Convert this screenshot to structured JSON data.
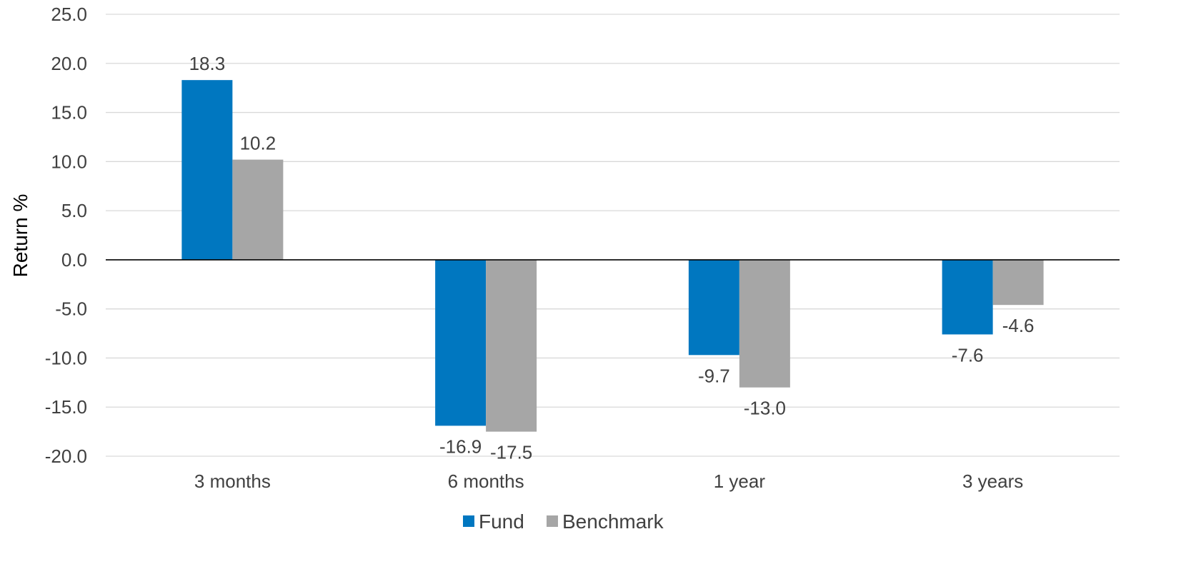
{
  "chart_data": {
    "type": "bar",
    "title": "",
    "xlabel": "",
    "ylabel": "Return %",
    "ylim": [
      -20,
      25
    ],
    "yticks": [
      25,
      20,
      15,
      10,
      5,
      0,
      -5,
      -10,
      -15,
      -20
    ],
    "ytick_labels": [
      "25.0",
      "20.0",
      "15.0",
      "10.0",
      "5.0",
      "0.0",
      "-5.0",
      "-10.0",
      "-15.0",
      "-20.0"
    ],
    "categories": [
      "3 months",
      "6 months",
      "1 year",
      "3 years"
    ],
    "series": [
      {
        "name": "Fund",
        "color": "#0077C0",
        "values": [
          18.3,
          -16.9,
          -9.7,
          -7.6
        ],
        "labels": [
          "18.3",
          "-16.9",
          "-9.7",
          "-7.6"
        ]
      },
      {
        "name": "Benchmark",
        "color": "#A6A6A6",
        "values": [
          10.2,
          -17.5,
          -13.0,
          -4.6
        ],
        "labels": [
          "10.2",
          "-17.5",
          "-13.0",
          "-4.6"
        ]
      }
    ],
    "grid": true,
    "legend_position": "bottom",
    "gridline_color": "#D9D9D9",
    "zero_line_color": "#000000"
  }
}
